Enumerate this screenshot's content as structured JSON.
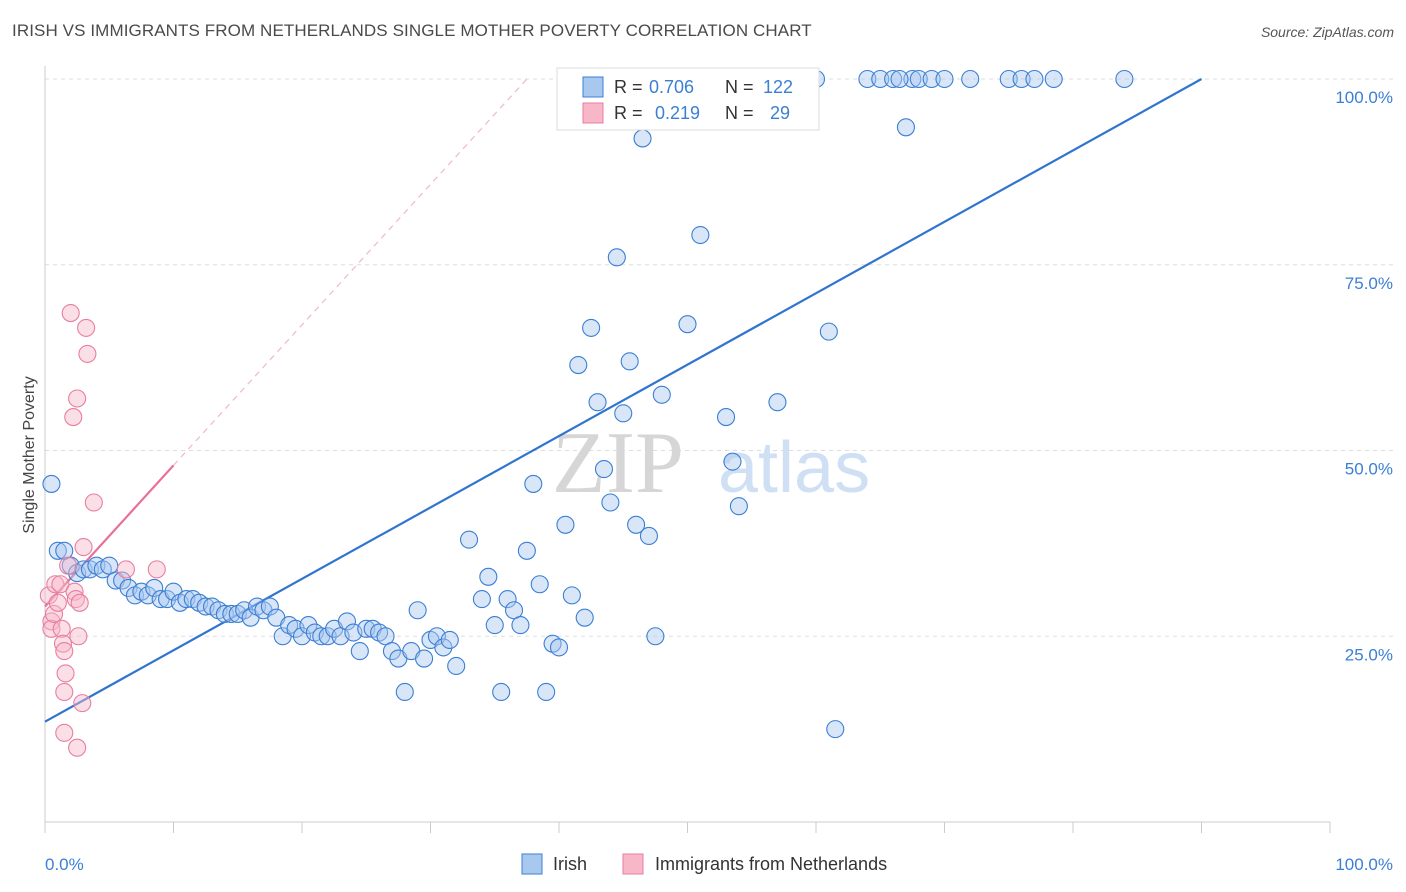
{
  "header": {
    "title": "IRISH VS IMMIGRANTS FROM NETHERLANDS SINGLE MOTHER POVERTY CORRELATION CHART",
    "source": "Source: ZipAtlas.com"
  },
  "watermark": {
    "zip": "ZIP",
    "atlas": "atlas"
  },
  "legend": {
    "rows": [
      {
        "r_label": "R = ",
        "r_value": "0.706",
        "n_label": "N = ",
        "n_value": "122",
        "color": "#a9c8f0"
      },
      {
        "r_label": "R = ",
        "r_value": "0.219",
        "n_label": "N = ",
        "n_value": "29",
        "color": "#f7b7c9"
      }
    ]
  },
  "chart_data": {
    "type": "scatter",
    "title": "IRISH VS IMMIGRANTS FROM NETHERLANDS SINGLE MOTHER POVERTY CORRELATION CHART",
    "xlabel": "",
    "ylabel": "Single Mother Poverty",
    "xlim": [
      0,
      100
    ],
    "ylim": [
      0,
      100
    ],
    "x_tick_labels": [
      "0.0%",
      "100.0%"
    ],
    "y_tick_labels": [
      "25.0%",
      "50.0%",
      "75.0%",
      "100.0%"
    ],
    "y_ticks": [
      25,
      50,
      75,
      100
    ],
    "grid": true,
    "legend_position": "top-center",
    "series": [
      {
        "name": "Irish",
        "color": "#a9c8f0",
        "stroke": "#3b7fd4",
        "trend_color": "#2f74cf",
        "trend": {
          "x": [
            0,
            90
          ],
          "y": [
            13.5,
            100
          ]
        },
        "points": [
          [
            0.5,
            45.5
          ],
          [
            1.0,
            36.5
          ],
          [
            1.5,
            36.5
          ],
          [
            2.0,
            34.5
          ],
          [
            2.5,
            33.5
          ],
          [
            3.0,
            34.0
          ],
          [
            3.5,
            34.0
          ],
          [
            4.0,
            34.5
          ],
          [
            4.5,
            34.0
          ],
          [
            5.0,
            34.5
          ],
          [
            5.5,
            32.5
          ],
          [
            6.0,
            32.5
          ],
          [
            6.5,
            31.5
          ],
          [
            7.0,
            30.5
          ],
          [
            7.5,
            31.0
          ],
          [
            8.0,
            30.5
          ],
          [
            8.5,
            31.5
          ],
          [
            9.0,
            30.0
          ],
          [
            9.5,
            30.0
          ],
          [
            10.0,
            31.0
          ],
          [
            10.5,
            29.5
          ],
          [
            11.0,
            30.0
          ],
          [
            11.5,
            30.0
          ],
          [
            12.0,
            29.5
          ],
          [
            12.5,
            29.0
          ],
          [
            13.0,
            29.0
          ],
          [
            13.5,
            28.5
          ],
          [
            14.0,
            28.0
          ],
          [
            14.5,
            28.0
          ],
          [
            15.0,
            28.0
          ],
          [
            15.5,
            28.5
          ],
          [
            16.0,
            27.5
          ],
          [
            16.5,
            29.0
          ],
          [
            17.0,
            28.5
          ],
          [
            17.5,
            29.0
          ],
          [
            18.0,
            27.5
          ],
          [
            18.5,
            25.0
          ],
          [
            19.0,
            26.5
          ],
          [
            19.5,
            26.0
          ],
          [
            20.0,
            25.0
          ],
          [
            20.5,
            26.5
          ],
          [
            21.0,
            25.5
          ],
          [
            21.5,
            25.0
          ],
          [
            22.0,
            25.0
          ],
          [
            22.5,
            26.0
          ],
          [
            23.0,
            25.0
          ],
          [
            23.5,
            27.0
          ],
          [
            24.0,
            25.5
          ],
          [
            24.5,
            23.0
          ],
          [
            25.0,
            26.0
          ],
          [
            25.5,
            26.0
          ],
          [
            26.0,
            25.5
          ],
          [
            26.5,
            25.0
          ],
          [
            27.0,
            23.0
          ],
          [
            27.5,
            22.0
          ],
          [
            28.0,
            17.5
          ],
          [
            28.5,
            23.0
          ],
          [
            29.0,
            28.5
          ],
          [
            29.5,
            22.0
          ],
          [
            30.0,
            24.5
          ],
          [
            30.5,
            25.0
          ],
          [
            31.0,
            23.5
          ],
          [
            31.5,
            24.5
          ],
          [
            32.0,
            21.0
          ],
          [
            33.0,
            38.0
          ],
          [
            34.0,
            30.0
          ],
          [
            34.5,
            33.0
          ],
          [
            35.0,
            26.5
          ],
          [
            35.5,
            17.5
          ],
          [
            36.0,
            30.0
          ],
          [
            36.5,
            28.5
          ],
          [
            37.0,
            26.5
          ],
          [
            37.5,
            36.5
          ],
          [
            38.0,
            45.5
          ],
          [
            38.5,
            32.0
          ],
          [
            39.0,
            17.5
          ],
          [
            39.5,
            24.0
          ],
          [
            40.0,
            23.5
          ],
          [
            40.5,
            40.0
          ],
          [
            41.0,
            30.5
          ],
          [
            41.5,
            61.5
          ],
          [
            42.0,
            27.5
          ],
          [
            42.5,
            66.5
          ],
          [
            43.0,
            56.5
          ],
          [
            43.5,
            47.5
          ],
          [
            44.0,
            43.0
          ],
          [
            44.5,
            76.0
          ],
          [
            45.0,
            55.0
          ],
          [
            45.5,
            62.0
          ],
          [
            46.0,
            40.0
          ],
          [
            46.5,
            92.0
          ],
          [
            47.0,
            38.5
          ],
          [
            47.5,
            25.0
          ],
          [
            48.0,
            57.5
          ],
          [
            50.0,
            67.0
          ],
          [
            51.0,
            79.0
          ],
          [
            53.0,
            100.0
          ],
          [
            54.0,
            100.0
          ],
          [
            55.0,
            100.0
          ],
          [
            53.5,
            48.5
          ],
          [
            54.0,
            42.5
          ],
          [
            53.0,
            54.5
          ],
          [
            57.0,
            56.5
          ],
          [
            59.0,
            100.0
          ],
          [
            60.0,
            100.0
          ],
          [
            61.0,
            66.0
          ],
          [
            61.5,
            12.5
          ],
          [
            64.0,
            100.0
          ],
          [
            65.0,
            100.0
          ],
          [
            66.0,
            100.0
          ],
          [
            67.5,
            100.0
          ],
          [
            68.0,
            100.0
          ],
          [
            69.0,
            100.0
          ],
          [
            70.0,
            100.0
          ],
          [
            72.0,
            100.0
          ],
          [
            75.0,
            100.0
          ],
          [
            76.0,
            100.0
          ],
          [
            77.0,
            100.0
          ],
          [
            78.5,
            100.0
          ],
          [
            84.0,
            100.0
          ],
          [
            67.0,
            93.5
          ],
          [
            66.5,
            100.0
          ]
        ]
      },
      {
        "name": "Immigrants from Netherlands",
        "color": "#f7b7c9",
        "stroke": "#e87ea0",
        "trend_color": "#e8709a",
        "trend": {
          "x": [
            0,
            10
          ],
          "y": [
            29,
            48
          ]
        },
        "trend_dashed": {
          "x": [
            10,
            37.5
          ],
          "y": [
            48,
            100
          ]
        },
        "points": [
          [
            0.3,
            30.5
          ],
          [
            0.5,
            27.0
          ],
          [
            0.5,
            26.0
          ],
          [
            0.7,
            28.0
          ],
          [
            0.8,
            32.0
          ],
          [
            1.0,
            29.5
          ],
          [
            1.2,
            32.0
          ],
          [
            1.3,
            26.0
          ],
          [
            1.4,
            24.0
          ],
          [
            1.5,
            23.0
          ],
          [
            1.6,
            20.0
          ],
          [
            1.5,
            17.5
          ],
          [
            1.5,
            12.0
          ],
          [
            1.8,
            34.5
          ],
          [
            2.0,
            68.5
          ],
          [
            2.2,
            54.5
          ],
          [
            2.3,
            31.0
          ],
          [
            2.4,
            30.0
          ],
          [
            2.5,
            57.0
          ],
          [
            2.5,
            10.0
          ],
          [
            2.6,
            25.0
          ],
          [
            2.7,
            29.5
          ],
          [
            2.9,
            16.0
          ],
          [
            3.0,
            37.0
          ],
          [
            3.2,
            66.5
          ],
          [
            3.3,
            63.0
          ],
          [
            3.8,
            43.0
          ],
          [
            6.3,
            34.0
          ],
          [
            8.7,
            34.0
          ]
        ]
      }
    ]
  },
  "bottom_legend": [
    {
      "label": "Irish",
      "color": "#a9c8f0",
      "stroke": "#3b7fd4"
    },
    {
      "label": "Immigrants from Netherlands",
      "color": "#f7b7c9",
      "stroke": "#e87ea0"
    }
  ]
}
